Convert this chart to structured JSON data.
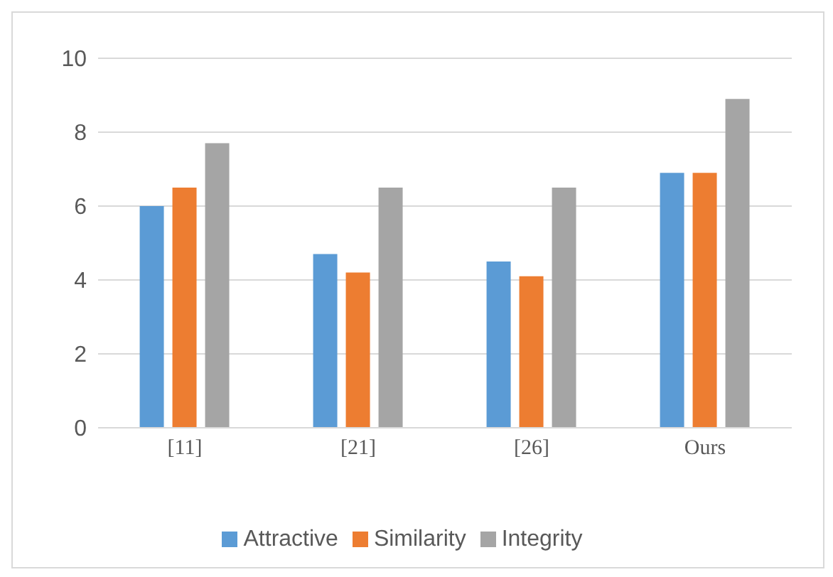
{
  "chart_data": {
    "type": "bar",
    "categories": [
      "[11]",
      "[21]",
      "[26]",
      "Ours"
    ],
    "series": [
      {
        "name": "Attractive",
        "color": "#5b9bd5",
        "values": [
          6.0,
          4.7,
          4.5,
          6.9
        ]
      },
      {
        "name": "Similarity",
        "color": "#ed7d31",
        "values": [
          6.5,
          4.2,
          4.1,
          6.9
        ]
      },
      {
        "name": "Integrity",
        "color": "#a5a5a5",
        "values": [
          7.7,
          6.5,
          6.5,
          8.9
        ]
      }
    ],
    "ylim": [
      0,
      10
    ],
    "yticks": [
      0,
      2,
      4,
      6,
      8,
      10
    ],
    "grid": "y",
    "legend": "bottom"
  }
}
